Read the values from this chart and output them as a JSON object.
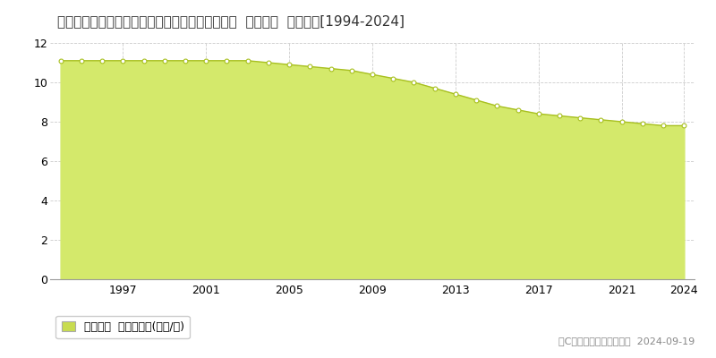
{
  "title": "宮崎県児湯郡高鍋町大字南高鍋字石原８５０番１  公示地価  地価推移[1994-2024]",
  "years": [
    1994,
    1995,
    1996,
    1997,
    1998,
    1999,
    2000,
    2001,
    2002,
    2003,
    2004,
    2005,
    2006,
    2007,
    2008,
    2009,
    2010,
    2011,
    2012,
    2013,
    2014,
    2015,
    2016,
    2017,
    2018,
    2019,
    2020,
    2021,
    2022,
    2023,
    2024
  ],
  "values": [
    11.1,
    11.1,
    11.1,
    11.1,
    11.1,
    11.1,
    11.1,
    11.1,
    11.1,
    11.1,
    11.0,
    10.9,
    10.8,
    10.7,
    10.6,
    10.4,
    10.2,
    10.0,
    9.7,
    9.4,
    9.1,
    8.8,
    8.6,
    8.4,
    8.3,
    8.2,
    8.1,
    8.0,
    7.9,
    7.8,
    7.8
  ],
  "fill_color": "#d4e96b",
  "line_color": "#a8c020",
  "marker_color": "#ffffff",
  "marker_edge_color": "#a8c020",
  "grid_color": "#cccccc",
  "background_color": "#ffffff",
  "plot_bg_color": "#ffffff",
  "ylim": [
    0,
    12
  ],
  "yticks": [
    0,
    2,
    4,
    6,
    8,
    10,
    12
  ],
  "xlabel_ticks": [
    1997,
    2001,
    2005,
    2009,
    2013,
    2017,
    2021,
    2024
  ],
  "legend_label": "公示地価  平均坪単価(万円/坪)",
  "legend_color": "#c8dc50",
  "copyright_text": "（C）土地価格ドットコム  2024-09-19",
  "title_fontsize": 11.0,
  "axis_fontsize": 9,
  "legend_fontsize": 9,
  "copyright_fontsize": 8
}
